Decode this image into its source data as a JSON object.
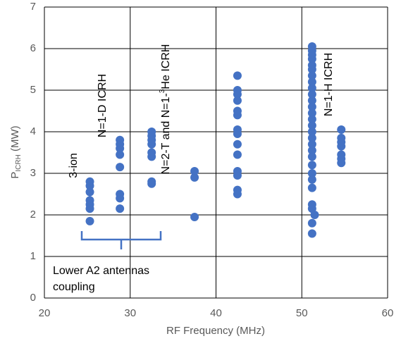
{
  "chart_data": {
    "type": "scatter",
    "xlabel": "RF Frequency (MHz)",
    "ylabel": {
      "main": "P",
      "sub": "ICRH",
      "rest": " (MW)"
    },
    "xlim": [
      20,
      60
    ],
    "xticks": [
      20,
      30,
      40,
      50,
      60
    ],
    "ylim": [
      0,
      7
    ],
    "yticks": [
      0,
      1,
      2,
      3,
      4,
      5,
      6,
      7
    ],
    "grid": true,
    "series": [
      {
        "color": "#4472c4",
        "x": [
          25.3,
          25.3,
          25.3,
          25.3,
          25.3,
          25.3,
          25.3,
          28.8,
          28.8,
          28.8,
          28.8,
          28.8,
          28.8,
          28.8,
          28.8,
          32.5,
          32.5,
          32.5,
          32.5,
          32.5,
          32.5,
          32.5,
          32.5,
          37.5,
          37.5,
          37.5,
          42.5,
          42.5,
          42.5,
          42.5,
          42.5,
          42.5,
          42.5,
          42.5,
          42.5,
          42.5,
          42.5,
          42.5,
          42.5,
          42.5,
          51.2,
          51.2,
          51.2,
          51.2,
          51.2,
          51.2,
          51.2,
          51.2,
          51.2,
          51.2,
          51.2,
          51.2,
          51.2,
          51.2,
          51.2,
          51.2,
          51.2,
          51.2,
          51.2,
          51.2,
          51.2,
          51.2,
          51.2,
          51.2,
          51.2,
          51.2,
          51.2,
          51.2,
          51.5,
          54.6,
          54.6,
          54.6,
          54.6,
          54.6,
          54.6,
          54.6
        ],
        "values": [
          2.8,
          2.7,
          2.55,
          2.35,
          2.25,
          2.15,
          1.85,
          3.8,
          3.7,
          3.6,
          3.45,
          3.15,
          2.5,
          2.4,
          2.15,
          4.0,
          3.9,
          3.8,
          3.7,
          3.5,
          3.4,
          2.8,
          2.75,
          3.05,
          2.9,
          1.95,
          5.35,
          5.0,
          4.9,
          4.75,
          4.5,
          4.4,
          4.05,
          3.95,
          3.7,
          3.45,
          3.05,
          2.95,
          2.6,
          2.5,
          6.05,
          5.95,
          5.85,
          5.75,
          5.6,
          5.5,
          5.35,
          5.2,
          5.05,
          4.9,
          4.75,
          4.6,
          4.45,
          4.3,
          4.15,
          4.0,
          3.85,
          3.7,
          3.55,
          3.4,
          3.2,
          3.0,
          2.85,
          2.65,
          2.25,
          2.15,
          1.8,
          1.55,
          2.0,
          4.05,
          3.85,
          3.75,
          3.65,
          3.45,
          3.35,
          3.25
        ]
      }
    ],
    "annotations": {
      "three_ion": "3-ion",
      "n1d": "N=1-D  ICRH",
      "n2t": {
        "a": "N=2-T and N=1-",
        "sup": "3",
        "b": "He ICRH"
      },
      "n1h": "N=1-H  ICRH",
      "antennas": [
        "Lower A2 antennas",
        "coupling"
      ]
    }
  }
}
